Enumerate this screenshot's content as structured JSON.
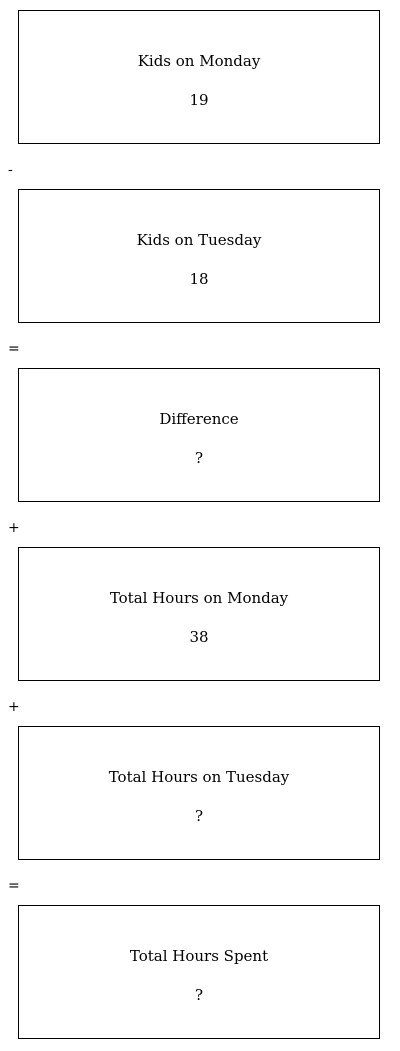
{
  "boxes": [
    {
      "label": "Kids on Monday",
      "value": "19"
    },
    {
      "label": "Kids on Tuesday",
      "value": "18"
    },
    {
      "label": "Difference",
      "value": "?"
    },
    {
      "label": "Total Hours on Monday",
      "value": "38"
    },
    {
      "label": "Total Hours on Tuesday",
      "value": "?"
    },
    {
      "label": "Total Hours Spent",
      "value": "?"
    }
  ],
  "operators": [
    "-",
    "=",
    "+",
    "+",
    "="
  ]
}
